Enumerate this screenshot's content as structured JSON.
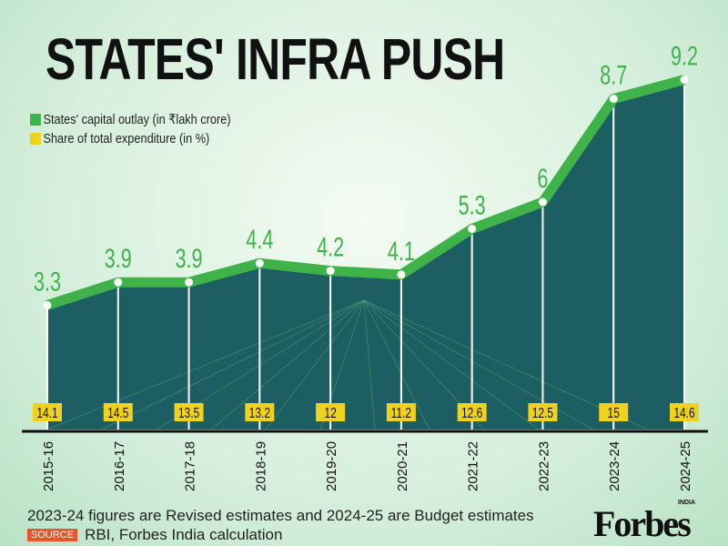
{
  "chart_data": {
    "type": "line",
    "title": "STATES' INFRA PUSH",
    "categories": [
      "2015-16",
      "2016-17",
      "2017-18",
      "2018-19",
      "2019-20",
      "2020-21",
      "2021-22",
      "2022-23",
      "2023-24",
      "2024-25"
    ],
    "series": [
      {
        "name": "States' capital outlay (in ₹lakh crore)",
        "values": [
          3.3,
          3.9,
          3.9,
          4.4,
          4.2,
          4.1,
          5.3,
          6,
          8.7,
          9.2
        ],
        "color": "#3fb34a"
      },
      {
        "name": "Share of total expenditure (in %)",
        "values": [
          14.1,
          14.5,
          13.5,
          13.2,
          12,
          11.2,
          12.6,
          12.5,
          15,
          14.6
        ],
        "color": "#f0d21c"
      }
    ],
    "legend": "top-left"
  },
  "footer": {
    "note": "2023-24 figures are Revised estimates and 2024-25 are Budget estimates",
    "source_label": "SOURCE",
    "source": "RBI, Forbes India calculation",
    "logo": "Forbes",
    "logo_sub": "INDIA"
  }
}
